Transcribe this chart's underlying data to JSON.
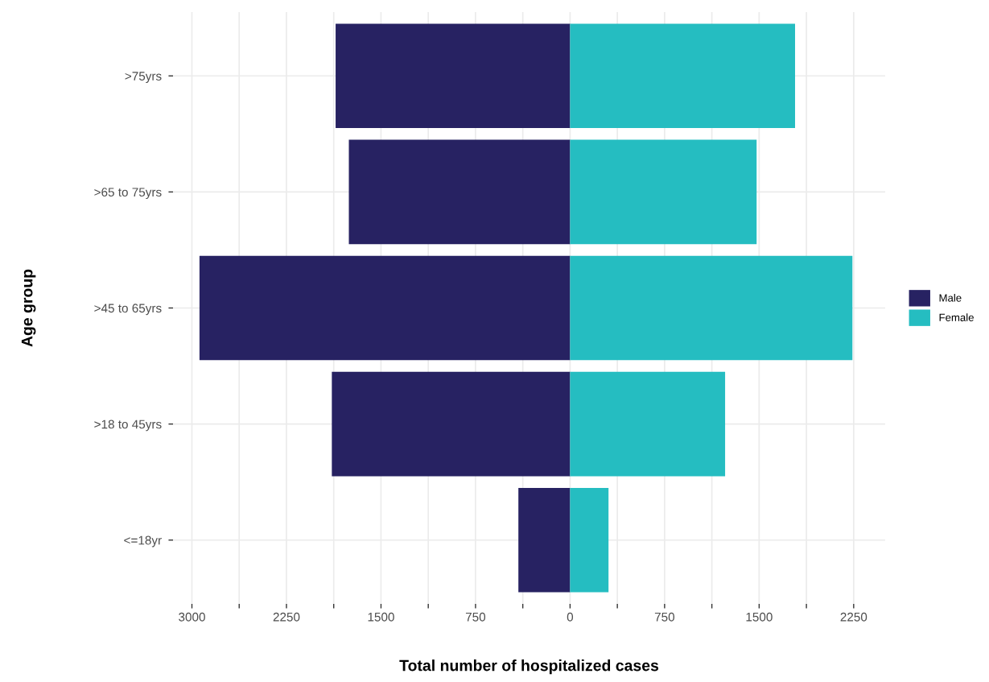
{
  "chart_data": {
    "type": "bar",
    "orientation": "horizontal",
    "stacked": true,
    "xlabel": "Total number of hospitalized cases",
    "ylabel": "Age group",
    "categories": [
      ">75yrs",
      ">65 to 75yrs",
      ">45 to 65yrs",
      ">18 to 45yrs",
      "<=18yr"
    ],
    "series": [
      {
        "name": "Male",
        "color": "#272262",
        "values": [
          -1860,
          -1755,
          -2940,
          -1890,
          -410
        ]
      },
      {
        "name": "Female",
        "color": "#25bdc1",
        "values": [
          1785,
          1480,
          2240,
          1230,
          305
        ]
      }
    ],
    "xlim": [
      -3150,
      2500
    ],
    "xticks": [
      {
        "value": -3000,
        "label": "3000"
      },
      {
        "value": -2625,
        "label": null
      },
      {
        "value": -2250,
        "label": "2250"
      },
      {
        "value": -1875,
        "label": null
      },
      {
        "value": -1500,
        "label": "1500"
      },
      {
        "value": -1125,
        "label": null
      },
      {
        "value": -750,
        "label": "750"
      },
      {
        "value": -375,
        "label": null
      },
      0,
      {
        "value": 375,
        "label": null
      },
      750,
      {
        "value": 1125,
        "label": null
      },
      1500,
      {
        "value": 1875,
        "label": null
      },
      2250
    ],
    "grid": true,
    "legend": "right"
  }
}
